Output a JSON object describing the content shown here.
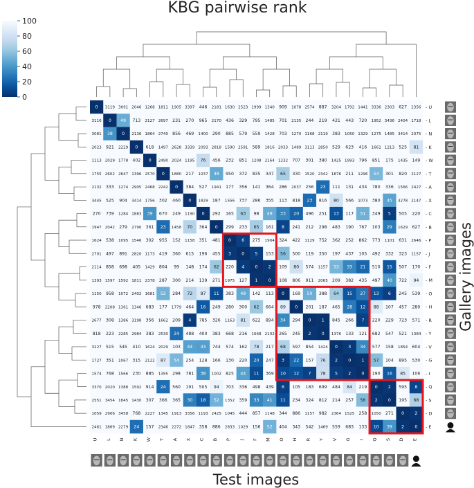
{
  "chart_data": {
    "type": "heatmap",
    "title": "KBG pairwise rank",
    "xlabel": "Test images",
    "ylabel": "Gallery images",
    "row_labels": [
      "U",
      "L",
      "N",
      "K",
      "W",
      "T",
      "A",
      "X",
      "C",
      "B",
      "P",
      "J",
      "F",
      "M",
      "O",
      "H",
      "R",
      "Y",
      "V",
      "G",
      "I",
      "Q",
      "S",
      "D",
      "E"
    ],
    "col_labels": [
      "U",
      "L",
      "N",
      "K",
      "W",
      "T",
      "A",
      "X",
      "C",
      "B",
      "P",
      "J",
      "F",
      "M",
      "O",
      "H",
      "R",
      "Y",
      "V",
      "G",
      "I",
      "Q",
      "S",
      "D",
      "E"
    ],
    "colorbar": {
      "min": 0,
      "max": 100,
      "ticks": [
        0,
        20,
        40,
        60,
        80,
        100
      ],
      "colormap": "Blues_r"
    },
    "values": [
      [
        0,
        3119,
        3091,
        2046,
        1268,
        1811,
        1905,
        3397,
        446,
        2181,
        1630,
        2523,
        1999,
        1340,
        909,
        1078,
        2574,
        887,
        3204,
        1792,
        1441,
        3336,
        2303,
        627,
        2356
      ],
      [
        3116,
        0,
        49,
        713,
        2127,
        2697,
        231,
        270,
        965,
        2170,
        436,
        329,
        795,
        1485,
        701,
        2135,
        244,
        219,
        421,
        443,
        720,
        1952,
        3436,
        2404,
        1718
      ],
      [
        3081,
        38,
        0,
        2136,
        1864,
        2740,
        856,
        469,
        1400,
        290,
        885,
        579,
        559,
        1428,
        703,
        1270,
        1168,
        2119,
        383,
        1050,
        1329,
        1275,
        1485,
        3414,
        2075
      ],
      [
        2023,
        921,
        2229,
        0,
        618,
        1497,
        2628,
        3339,
        2093,
        2818,
        1590,
        2591,
        589,
        1816,
        2033,
        1489,
        3113,
        2850,
        529,
        623,
        416,
        1661,
        1213,
        525,
        81
      ],
      [
        1113,
        2029,
        1778,
        402,
        0,
        2490,
        2024,
        1195,
        76,
        456,
        232,
        851,
        1208,
        2164,
        1232,
        707,
        301,
        380,
        1425,
        1993,
        796,
        851,
        175,
        1435,
        149
      ],
      [
        1755,
        2602,
        2647,
        1396,
        2570,
        0,
        1880,
        217,
        1037,
        48,
        950,
        372,
        835,
        347,
        65,
        330,
        1520,
        2342,
        1876,
        211,
        1296,
        54,
        301,
        820,
        2127
      ],
      [
        2132,
        333,
        1274,
        2905,
        2468,
        2242,
        0,
        384,
        527,
        1941,
        177,
        356,
        141,
        364,
        286,
        2037,
        256,
        23,
        111,
        131,
        434,
        780,
        336,
        1566,
        2427
      ],
      [
        3445,
        525,
        904,
        3414,
        1756,
        302,
        460,
        0,
        1829,
        187,
        1556,
        737,
        286,
        355,
        113,
        818,
        23,
        816,
        80,
        566,
        1073,
        380,
        45,
        3278,
        2147
      ],
      [
        270,
        739,
        1284,
        1883,
        39,
        670,
        249,
        1190,
        0,
        292,
        165,
        63,
        98,
        49,
        33,
        20,
        496,
        251,
        13,
        117,
        51,
        349,
        5,
        505,
        220
      ],
      [
        1947,
        2042,
        279,
        2790,
        361,
        23,
        1458,
        70,
        364,
        0,
        299,
        233,
        65,
        161,
        8,
        241,
        212,
        298,
        483,
        190,
        767,
        103,
        29,
        1629,
        627
      ],
      [
        1624,
        538,
        1095,
        1546,
        302,
        955,
        152,
        1158,
        351,
        481,
        0,
        6,
        275,
        1904,
        324,
        422,
        1129,
        752,
        362,
        252,
        862,
        773,
        1101,
        631,
        2646
      ],
      [
        2701,
        497,
        891,
        2820,
        1173,
        419,
        360,
        615,
        196,
        455,
        3,
        0,
        5,
        153,
        56,
        500,
        119,
        350,
        197,
        437,
        105,
        492,
        332,
        323,
        1157
      ],
      [
        2114,
        858,
        698,
        405,
        1429,
        804,
        99,
        148,
        174,
        62,
        220,
        4,
        0,
        2,
        109,
        80,
        574,
        1157,
        53,
        33,
        21,
        510,
        15,
        507,
        170
      ],
      [
        1393,
        1597,
        1592,
        1811,
        2378,
        287,
        300,
        214,
        139,
        271,
        1975,
        127,
        1,
        0,
        108,
        806,
        911,
        2065,
        209,
        382,
        435,
        497,
        40,
        722,
        94
      ],
      [
        1150,
        958,
        1072,
        2402,
        1681,
        52,
        284,
        72,
        87,
        11,
        383,
        48,
        142,
        113,
        0,
        169,
        50,
        388,
        64,
        15,
        27,
        13,
        6,
        245,
        539
      ],
      [
        978,
        2208,
        1361,
        1346,
        683,
        177,
        1779,
        464,
        16,
        249,
        280,
        300,
        62,
        664,
        89,
        0,
        201,
        187,
        465,
        28,
        12,
        88,
        107,
        457,
        280
      ],
      [
        2677,
        308,
        1386,
        3198,
        356,
        1662,
        209,
        4,
        785,
        326,
        1163,
        81,
        622,
        894,
        34,
        294,
        0,
        1,
        845,
        266,
        7,
        220,
        229,
        723,
        571
      ],
      [
        818,
        223,
        2285,
        2984,
        383,
        2530,
        24,
        488,
        400,
        383,
        668,
        216,
        1068,
        2102,
        265,
        245,
        2,
        0,
        1376,
        133,
        121,
        682,
        547,
        521,
        1384
      ],
      [
        3227,
        515,
        545,
        410,
        1624,
        2029,
        103,
        44,
        43,
        744,
        574,
        162,
        78,
        217,
        68,
        597,
        854,
        1424,
        0,
        3,
        34,
        577,
        158,
        1854,
        604
      ],
      [
        1727,
        351,
        1067,
        315,
        2122,
        87,
        54,
        254,
        128,
        166,
        130,
        220,
        20,
        247,
        3,
        22,
        157,
        76,
        2,
        0,
        1,
        57,
        104,
        895,
        530
      ],
      [
        1574,
        768,
        1566,
        230,
        885,
        1395,
        298,
        781,
        38,
        1002,
        825,
        44,
        11,
        369,
        10,
        12,
        7,
        78,
        5,
        2,
        0,
        190,
        16,
        85,
        106
      ],
      [
        3370,
        2020,
        1388,
        1592,
        914,
        24,
        560,
        191,
        505,
        94,
        703,
        336,
        498,
        439,
        6,
        105,
        183,
        699,
        484,
        84,
        219,
        0,
        2,
        595,
        8
      ],
      [
        2551,
        3454,
        1845,
        1430,
        307,
        366,
        365,
        30,
        18,
        52,
        1352,
        359,
        33,
        41,
        11,
        234,
        324,
        812,
        214,
        257,
        56,
        2,
        0,
        195,
        68
      ],
      [
        1059,
        2906,
        3458,
        768,
        2227,
        1345,
        1913,
        3356,
        1193,
        2425,
        1045,
        444,
        857,
        1148,
        344,
        886,
        1157,
        982,
        2364,
        1525,
        258,
        1050,
        271,
        0,
        2
      ],
      [
        2461,
        1869,
        2279,
        24,
        157,
        2346,
        2272,
        1847,
        358,
        886,
        2833,
        1029,
        156,
        52,
        404,
        343,
        542,
        1469,
        559,
        683,
        133,
        10,
        39,
        2,
        0
      ]
    ],
    "highlight_boxes": [
      {
        "rows": [
          "P",
          "M"
        ],
        "cols": [
          "P",
          "M"
        ],
        "color": "#e8141b"
      },
      {
        "rows": [
          "O",
          "I"
        ],
        "cols": [
          "O",
          "I"
        ],
        "color": "#e8141b"
      },
      {
        "rows": [
          "Q",
          "E"
        ],
        "cols": [
          "Q",
          "E"
        ],
        "color": "#e8141b"
      }
    ],
    "dendrograms": [
      "top",
      "left"
    ],
    "face_thumbnails": [
      "right",
      "bottom"
    ]
  }
}
